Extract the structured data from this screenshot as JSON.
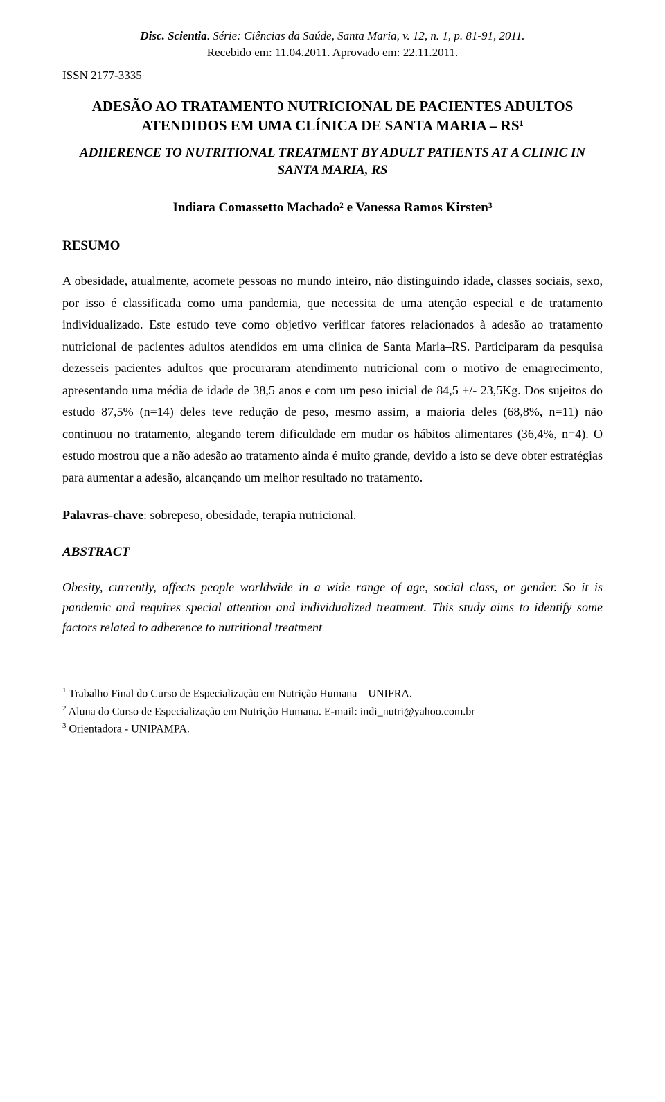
{
  "header": {
    "journal_ref_prefix": "Disc. Scientia",
    "journal_ref_rest": ". Série: Ciências da Saúde, Santa Maria, v. 12, n. 1, p. 81-91, 2011.",
    "dates": "Recebido em: 11.04.2011. Aprovado em: 22.11.2011.",
    "issn": "ISSN 2177-3335"
  },
  "title_pt": "ADESÃO AO TRATAMENTO NUTRICIONAL DE PACIENTES ADULTOS ATENDIDOS EM UMA CLÍNICA DE SANTA MARIA – RS¹",
  "title_en": "ADHERENCE TO NUTRITIONAL TREATMENT BY ADULT PATIENTS AT A CLINIC IN SANTA MARIA, RS",
  "authors": "Indiara Comassetto Machado² e Vanessa Ramos Kirsten³",
  "resumo": {
    "heading": "RESUMO",
    "body": "A obesidade, atualmente, acomete pessoas no mundo inteiro, não distinguindo idade, classes sociais, sexo, por isso é classificada como uma pandemia, que necessita de uma atenção especial e de tratamento individualizado. Este estudo teve como objetivo verificar fatores relacionados à adesão ao tratamento nutricional de pacientes adultos atendidos em uma clinica de Santa Maria–RS. Participaram da pesquisa dezesseis pacientes adultos que procuraram atendimento nutricional com o motivo de emagrecimento, apresentando uma média de idade de 38,5 anos e com um peso inicial de 84,5 +/- 23,5Kg. Dos sujeitos do estudo 87,5% (n=14) deles teve redução de peso, mesmo assim, a maioria deles (68,8%, n=11) não continuou no tratamento, alegando terem dificuldade em mudar os hábitos alimentares (36,4%, n=4). O estudo mostrou que a não adesão ao tratamento ainda é muito grande, devido a isto se deve obter estratégias para aumentar a adesão, alcançando um melhor resultado no tratamento."
  },
  "keywords": {
    "label": "Palavras-chave",
    "values": ": sobrepeso, obesidade, terapia nutricional."
  },
  "abstract": {
    "heading": "ABSTRACT",
    "body": "Obesity, currently, affects people worldwide in a wide range of age, social class, or gender. So it is pandemic and requires special attention and individualized treatment. This study aims to identify some factors related to adherence to nutritional treatment"
  },
  "footnotes": {
    "f1": " Trabalho Final do Curso de Especialização em Nutrição Humana – UNIFRA.",
    "f2": " Aluna do Curso de Especialização em Nutrição Humana. E-mail: indi_nutri@yahoo.com.br",
    "f3": " Orientadora - UNIPAMPA."
  }
}
